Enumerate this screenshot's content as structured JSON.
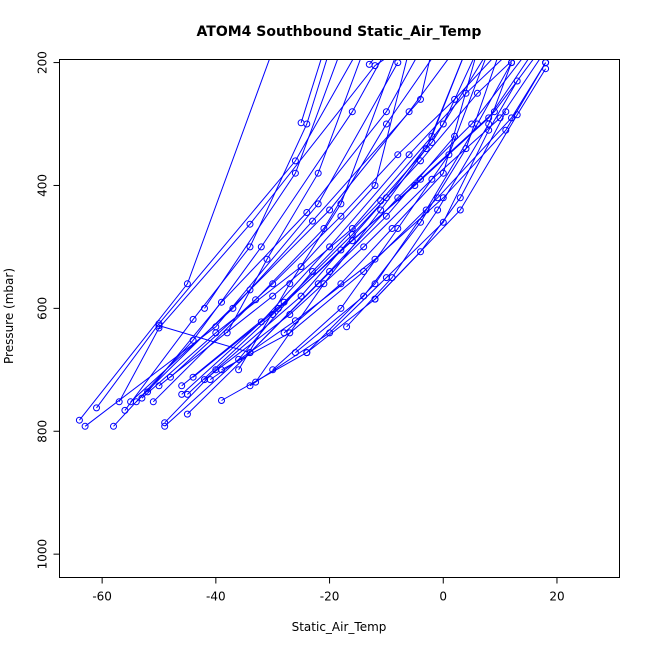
{
  "chart_data": {
    "type": "line",
    "title": "ATOM4 Southbound Static_Air_Temp",
    "xlabel": "Static_Air_Temp",
    "ylabel": "Pressure (mbar)",
    "xlim": [
      -67.5,
      31
    ],
    "ylim": [
      1038,
      195
    ],
    "y_reversed": true,
    "x_ticks": [
      -60,
      -40,
      -20,
      0,
      20
    ],
    "y_ticks": [
      200,
      400,
      600,
      800,
      1000
    ],
    "x_tick_labels": [
      "-60",
      "-40",
      "-20",
      "0",
      "20"
    ],
    "y_tick_labels": [
      "200",
      "400",
      "600",
      "800",
      "1000"
    ],
    "grid": false,
    "legend": "none",
    "series_color": "#0000ff",
    "marker": "open-circle",
    "series": [
      {
        "points": [
          [
            -64,
            782
          ],
          [
            -45,
            560
          ],
          [
            -30,
            180
          ]
        ]
      },
      {
        "points": [
          [
            -63,
            792
          ],
          [
            -40,
            630
          ],
          [
            -22,
            430
          ],
          [
            -8,
            200
          ]
        ]
      },
      {
        "points": [
          [
            -61,
            762
          ],
          [
            -50,
            625
          ],
          [
            -26,
            360
          ],
          [
            -15,
            180
          ]
        ]
      },
      {
        "points": [
          [
            -58,
            792
          ],
          [
            -44,
            652
          ],
          [
            -32,
            500
          ],
          [
            -16,
            280
          ],
          [
            -10,
            180
          ]
        ]
      },
      {
        "points": [
          [
            -57,
            752
          ],
          [
            -50,
            632
          ],
          [
            -34,
            463
          ],
          [
            -12,
            205
          ],
          [
            -8,
            180
          ]
        ]
      },
      {
        "points": [
          [
            -56,
            766
          ],
          [
            -44,
            618
          ],
          [
            -34,
            500
          ],
          [
            -24,
            300
          ],
          [
            -20,
            180
          ]
        ]
      },
      {
        "points": [
          [
            -55,
            752
          ],
          [
            -37,
            600
          ],
          [
            -23,
            458
          ],
          [
            -4,
            260
          ],
          [
            -2,
            180
          ]
        ]
      },
      {
        "points": [
          [
            -54,
            752
          ],
          [
            -34,
            570
          ],
          [
            -20,
            440
          ],
          [
            -6,
            280
          ],
          [
            2,
            180
          ]
        ]
      },
      {
        "points": [
          [
            -53,
            746
          ],
          [
            -40,
            640
          ],
          [
            -25,
            532
          ],
          [
            -12,
            400
          ],
          [
            -6,
            180
          ]
        ]
      },
      {
        "points": [
          [
            -52,
            736
          ],
          [
            -39,
            590
          ],
          [
            -24,
            444
          ],
          [
            -10,
            280
          ],
          [
            -4,
            180
          ]
        ]
      },
      {
        "points": [
          [
            -51,
            752
          ],
          [
            -33,
            586
          ],
          [
            -21,
            470
          ],
          [
            -10,
            300
          ],
          [
            -1,
            180
          ]
        ]
      },
      {
        "points": [
          [
            -50,
            726
          ],
          [
            -30,
            580
          ],
          [
            -16,
            470
          ],
          [
            -2,
            320
          ],
          [
            4,
            180
          ]
        ]
      },
      {
        "points": [
          [
            -49,
            786
          ],
          [
            -40,
            700
          ],
          [
            -25,
            580
          ],
          [
            -10,
            420
          ],
          [
            0,
            300
          ],
          [
            6,
            180
          ]
        ]
      },
      {
        "points": [
          [
            -49,
            792
          ],
          [
            -36,
            683
          ],
          [
            -23,
            540
          ],
          [
            -11,
            425
          ],
          [
            -2,
            330
          ],
          [
            8,
            180
          ]
        ]
      },
      {
        "points": [
          [
            -48,
            712
          ],
          [
            -30,
            560
          ],
          [
            -18,
            450
          ],
          [
            -8,
            350
          ],
          [
            2,
            260
          ],
          [
            10,
            180
          ]
        ]
      },
      {
        "points": [
          [
            -46,
            740
          ],
          [
            -32,
            622
          ],
          [
            -20,
            500
          ],
          [
            -6,
            350
          ],
          [
            4,
            250
          ],
          [
            12,
            180
          ]
        ]
      },
      {
        "points": [
          [
            -46,
            726
          ],
          [
            -28,
            590
          ],
          [
            -16,
            480
          ],
          [
            -4,
            360
          ],
          [
            6,
            250
          ],
          [
            14,
            180
          ]
        ]
      },
      {
        "points": [
          [
            -45,
            772
          ],
          [
            -34,
            672
          ],
          [
            -20,
            540
          ],
          [
            -8,
            420
          ],
          [
            5,
            300
          ],
          [
            15,
            180
          ]
        ]
      },
      {
        "points": [
          [
            -45,
            740
          ],
          [
            -30,
            610
          ],
          [
            -18,
            505
          ],
          [
            -5,
            400
          ],
          [
            8,
            290
          ],
          [
            16,
            180
          ]
        ]
      },
      {
        "points": [
          [
            -44,
            712
          ],
          [
            -29,
            600
          ],
          [
            -16,
            490
          ],
          [
            -4,
            390
          ],
          [
            9,
            280
          ],
          [
            17,
            180
          ]
        ]
      },
      {
        "points": [
          [
            -42,
            716
          ],
          [
            -27,
            610
          ],
          [
            -14,
            500
          ],
          [
            -2,
            390
          ],
          [
            10,
            290
          ],
          [
            18,
            180
          ]
        ]
      },
      {
        "points": [
          [
            -41,
            716
          ],
          [
            -26,
            620
          ],
          [
            -12,
            520
          ],
          [
            0,
            420
          ],
          [
            11,
            310
          ],
          [
            18,
            200
          ]
        ]
      },
      {
        "points": [
          [
            -39,
            700
          ],
          [
            -27,
            640
          ],
          [
            -14,
            540
          ],
          [
            -1,
            420
          ],
          [
            12,
            290
          ],
          [
            18,
            200
          ]
        ]
      },
      {
        "points": [
          [
            -39,
            750
          ],
          [
            -24,
            672
          ],
          [
            -12,
            585
          ],
          [
            3,
            440
          ],
          [
            13,
            285
          ],
          [
            18,
            210
          ]
        ]
      },
      {
        "points": [
          [
            -34,
            726
          ],
          [
            -20,
            640
          ],
          [
            -10,
            550
          ],
          [
            0,
            460
          ],
          [
            8,
            310
          ],
          [
            13,
            230
          ]
        ]
      },
      {
        "points": [
          [
            -50,
            628
          ],
          [
            -34,
            672
          ],
          [
            -22,
            560
          ],
          [
            -10,
            450
          ],
          [
            2,
            320
          ]
        ]
      },
      {
        "points": [
          [
            -28,
            640
          ],
          [
            -18,
            560
          ],
          [
            -9,
            470
          ],
          [
            0,
            380
          ],
          [
            6,
            180
          ]
        ]
      },
      {
        "points": [
          [
            -26,
            672
          ],
          [
            -14,
            580
          ],
          [
            -4,
            460
          ],
          [
            4,
            340
          ],
          [
            10,
            180
          ]
        ]
      },
      {
        "points": [
          [
            -24,
            672
          ],
          [
            -12,
            560
          ],
          [
            -3,
            440
          ],
          [
            6,
            300
          ],
          [
            12,
            200
          ]
        ]
      },
      {
        "points": [
          [
            -17,
            630
          ],
          [
            -9,
            550
          ],
          [
            -1,
            440
          ],
          [
            8,
            300
          ],
          [
            12,
            200
          ]
        ]
      },
      {
        "points": [
          [
            -12,
            585
          ],
          [
            -4,
            508
          ],
          [
            3,
            420
          ],
          [
            11,
            280
          ]
        ]
      },
      {
        "points": [
          [
            -25,
            298
          ],
          [
            -21,
            180
          ]
        ]
      },
      {
        "points": [
          [
            -13,
            203
          ],
          [
            -11,
            180
          ]
        ]
      },
      {
        "points": [
          [
            -38,
            640
          ],
          [
            -31,
            520
          ],
          [
            -22,
            380
          ],
          [
            -14,
            180
          ]
        ]
      },
      {
        "points": [
          [
            -42,
            600
          ],
          [
            -26,
            380
          ],
          [
            -18,
            180
          ]
        ]
      },
      {
        "points": [
          [
            -36,
            700
          ],
          [
            -27,
            560
          ],
          [
            -18,
            430
          ],
          [
            -8,
            180
          ]
        ]
      },
      {
        "points": [
          [
            -33,
            720
          ],
          [
            -21,
            560
          ],
          [
            -11,
            440
          ],
          [
            -3,
            340
          ],
          [
            4,
            180
          ]
        ]
      },
      {
        "points": [
          [
            -30,
            700
          ],
          [
            -18,
            600
          ],
          [
            -8,
            470
          ],
          [
            1,
            350
          ],
          [
            8,
            180
          ]
        ]
      }
    ]
  }
}
